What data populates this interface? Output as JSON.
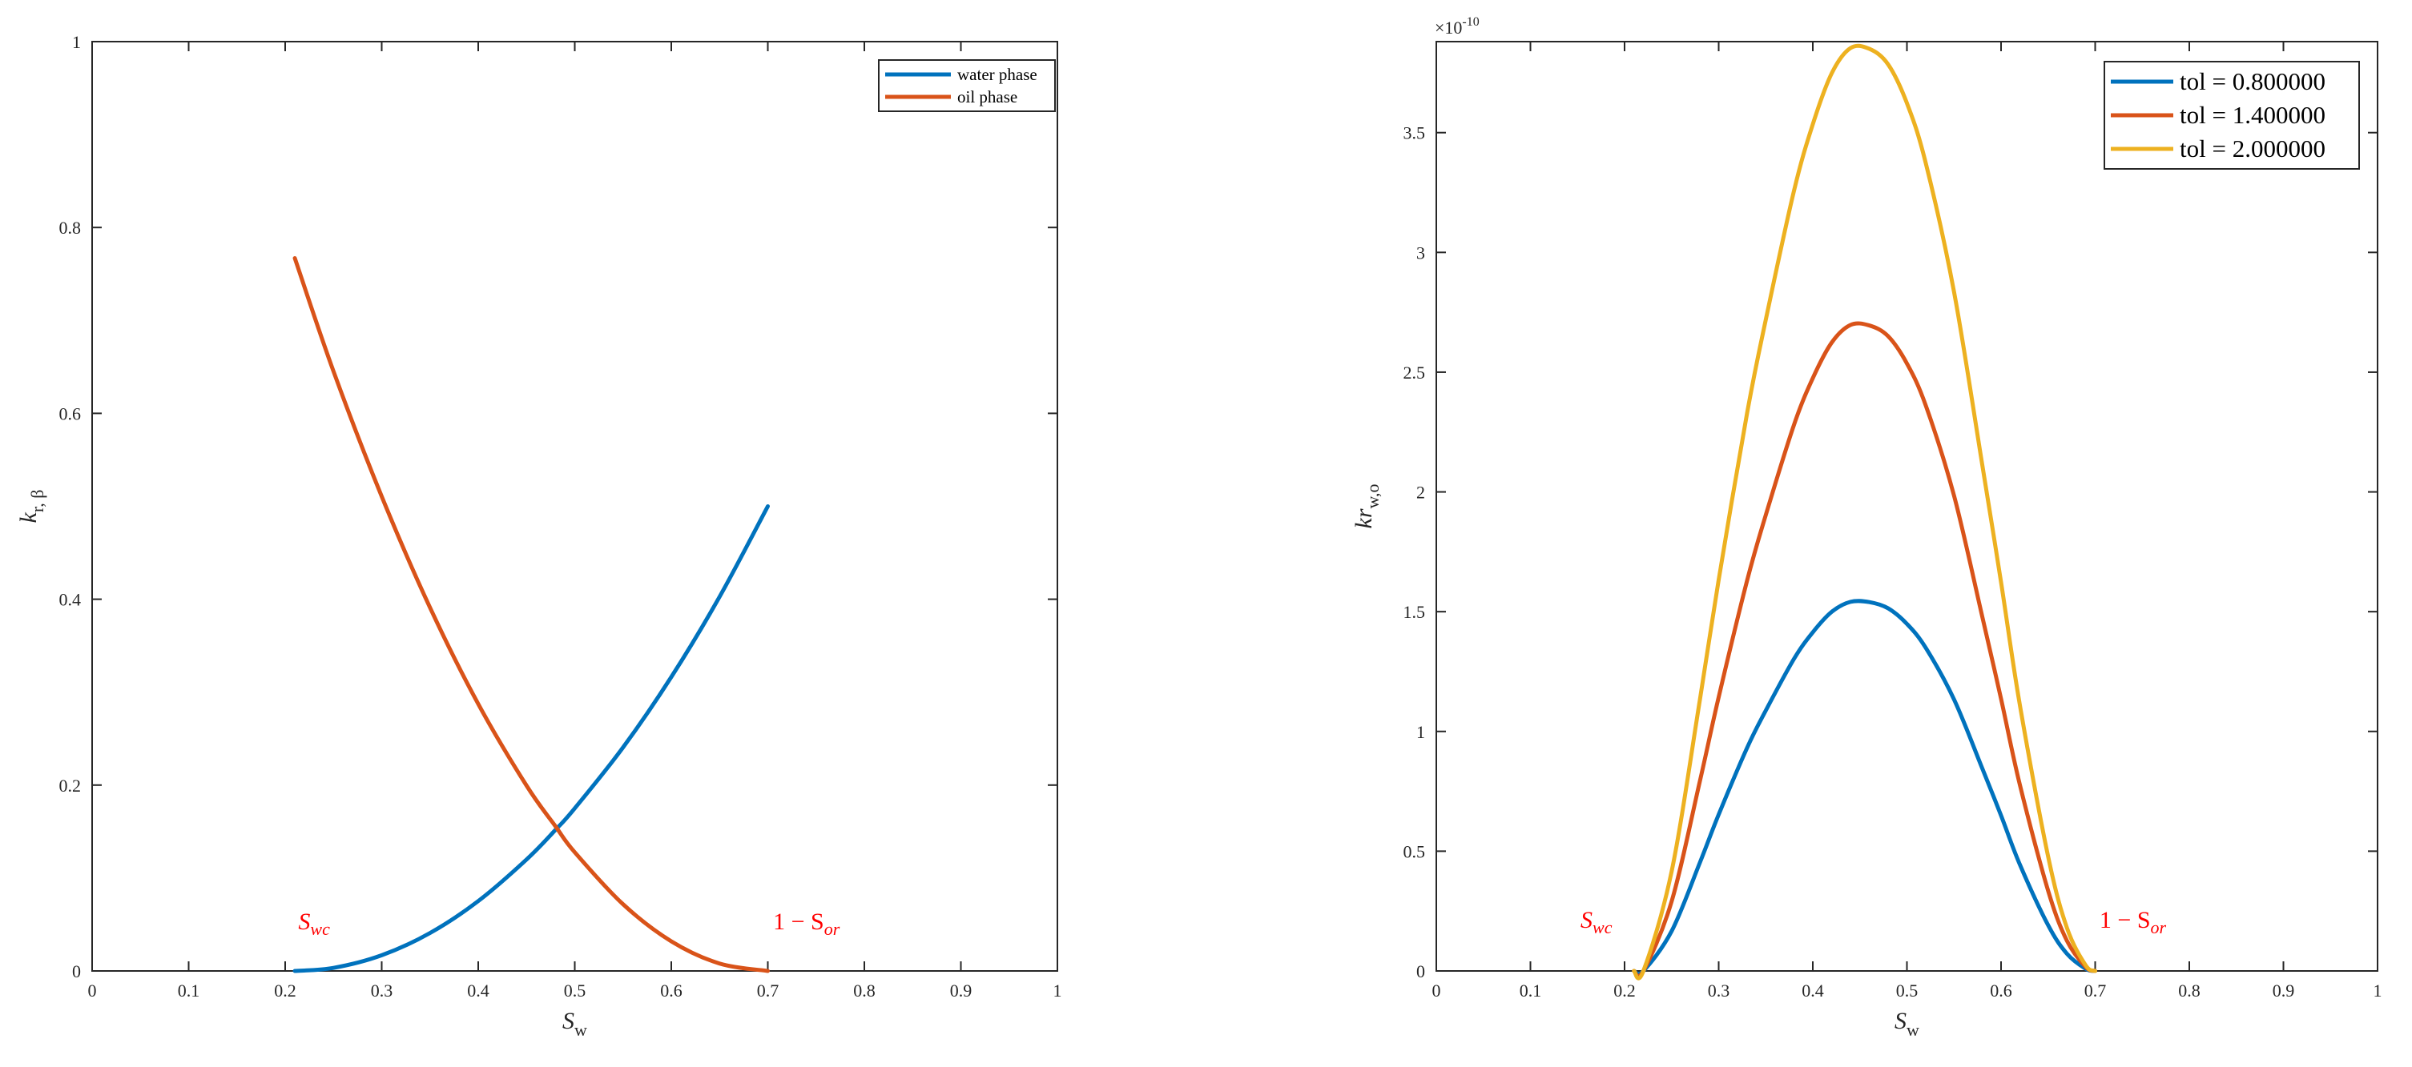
{
  "colors": {
    "water": "#0072BD",
    "oil": "#D95319",
    "tol3": "#EDB120",
    "annotation": "#FF0000",
    "axis": "#262626"
  },
  "chart_data": [
    {
      "type": "line",
      "xlabel": "S",
      "xlabel_sub": "w",
      "ylabel": "k",
      "ylabel_sub": "r, β",
      "xlim": [
        0,
        1
      ],
      "ylim": [
        0,
        1
      ],
      "xticks": [
        "0",
        "0.1",
        "0.2",
        "0.3",
        "0.4",
        "0.5",
        "0.6",
        "0.7",
        "0.8",
        "0.9",
        "1"
      ],
      "yticks": [
        "0",
        "0.2",
        "0.4",
        "0.6",
        "0.8",
        "1"
      ],
      "legend_position": "top-right",
      "grid": false,
      "annotations": [
        {
          "text_main": "S",
          "text_sub": "wc",
          "x": 0.23,
          "y": 0.045
        },
        {
          "text_main": "1 − S",
          "text_sub": "or",
          "x": 0.74,
          "y": 0.045
        }
      ],
      "series": [
        {
          "name": "water phase",
          "color": "#0072BD",
          "x": [
            0.21,
            0.25,
            0.3,
            0.35,
            0.4,
            0.45,
            0.48,
            0.5,
            0.55,
            0.6,
            0.65,
            0.7
          ],
          "y": [
            0.0,
            0.0033,
            0.0169,
            0.0408,
            0.0752,
            0.1199,
            0.1518,
            0.175,
            0.2405,
            0.3163,
            0.4026,
            0.5
          ]
        },
        {
          "name": "oil phase",
          "color": "#D95319",
          "x": [
            0.21,
            0.25,
            0.3,
            0.35,
            0.4,
            0.45,
            0.48,
            0.5,
            0.55,
            0.6,
            0.65,
            0.7
          ],
          "y": [
            0.767,
            0.6454,
            0.5106,
            0.3911,
            0.2873,
            0.1995,
            0.1557,
            0.1277,
            0.0718,
            0.0319,
            0.008,
            0.0
          ]
        }
      ]
    },
    {
      "type": "line",
      "xlabel": "S",
      "xlabel_sub": "w",
      "ylabel": "kr",
      "ylabel_sub": "w,o",
      "xlim": [
        0,
        1
      ],
      "ylim": [
        0,
        3.88
      ],
      "y_exponent": "×10",
      "y_exponent_power": "-10",
      "xticks": [
        "0",
        "0.1",
        "0.2",
        "0.3",
        "0.4",
        "0.5",
        "0.6",
        "0.7",
        "0.8",
        "0.9",
        "1"
      ],
      "yticks": [
        "0",
        "0.5",
        "1",
        "1.5",
        "2",
        "2.5",
        "3",
        "3.5"
      ],
      "legend_position": "top-right",
      "grid": false,
      "annotations": [
        {
          "text_main": "S",
          "text_sub": "wc",
          "x": 0.17,
          "y": 0.18
        },
        {
          "text_main": "1 − S",
          "text_sub": "or",
          "x": 0.74,
          "y": 0.18
        }
      ],
      "x": [
        0.21,
        0.22,
        0.25,
        0.28,
        0.3,
        0.33,
        0.35,
        0.38,
        0.4,
        0.42,
        0.44,
        0.46,
        0.48,
        0.5,
        0.52,
        0.55,
        0.58,
        0.6,
        0.62,
        0.65,
        0.67,
        0.69,
        0.7
      ],
      "series": [
        {
          "name": "tol = 0.800000",
          "color": "#0072BD",
          "y": [
            0.0,
            0.0,
            0.166,
            0.452,
            0.653,
            0.93,
            1.087,
            1.303,
            1.414,
            1.499,
            1.541,
            1.54,
            1.514,
            1.449,
            1.349,
            1.134,
            0.846,
            0.649,
            0.444,
            0.191,
            0.072,
            0.009,
            0.0
          ]
        },
        {
          "name": "tol = 1.400000",
          "color": "#D95319",
          "y": [
            0.0,
            0.0,
            0.29,
            0.792,
            1.143,
            1.627,
            1.903,
            2.28,
            2.475,
            2.623,
            2.697,
            2.695,
            2.65,
            2.536,
            2.361,
            1.985,
            1.48,
            1.136,
            0.777,
            0.335,
            0.126,
            0.016,
            0.0
          ]
        },
        {
          "name": "tol = 2.000000",
          "color": "#EDB120",
          "y": [
            0.0,
            0.0,
            0.415,
            1.131,
            1.633,
            2.325,
            2.718,
            3.257,
            3.535,
            3.747,
            3.853,
            3.85,
            3.785,
            3.623,
            3.373,
            2.836,
            2.114,
            1.623,
            1.11,
            0.478,
            0.18,
            0.023,
            0.0
          ]
        }
      ]
    }
  ]
}
